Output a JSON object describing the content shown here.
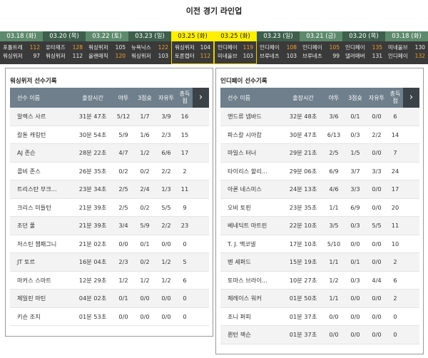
{
  "title": "이전 경기 라인업",
  "games": [
    {
      "date": "03.18 (화)",
      "t1": "포틀트레",
      "s1": "112",
      "w1": true,
      "t2": "워싱위저",
      "s2": "97",
      "w2": false,
      "style": "a"
    },
    {
      "date": "03.20 (목)",
      "t1": "유타재즈",
      "s1": "128",
      "w1": true,
      "t2": "워싱위저",
      "s2": "112",
      "w2": false,
      "style": "b"
    },
    {
      "date": "03.22 (토)",
      "t1": "워싱위저",
      "s1": "105",
      "w1": false,
      "t2": "올랜매직",
      "s2": "120",
      "w2": true,
      "style": "a"
    },
    {
      "date": "03.23 (일)",
      "t1": "뉴욕닉스",
      "s1": "122",
      "w1": true,
      "t2": "워싱위저",
      "s2": "103",
      "w2": false,
      "style": "b"
    },
    {
      "date": "03.25 (화)",
      "t1": "워싱위저",
      "s1": "104",
      "w1": false,
      "t2": "토론랩터",
      "s2": "112",
      "w2": true,
      "style": "sel"
    },
    {
      "date": "03.25 (화)",
      "t1": "인디페이",
      "s1": "119",
      "w1": true,
      "t2": "미네울브",
      "s2": "103",
      "w2": false,
      "style": "sel"
    },
    {
      "date": "03.23 (일)",
      "t1": "인디페이",
      "s1": "108",
      "w1": true,
      "t2": "브루네츠",
      "s2": "103",
      "w2": false,
      "style": "b"
    },
    {
      "date": "03.21 (금)",
      "t1": "인디페이",
      "s1": "105",
      "w1": true,
      "t2": "브루네츠",
      "s2": "99",
      "w2": false,
      "style": "a"
    },
    {
      "date": "03.20 (목)",
      "t1": "인디페이",
      "s1": "135",
      "w1": true,
      "t2": "댈러매버",
      "s2": "131",
      "w2": false,
      "style": "b"
    },
    {
      "date": "03.18 (화)",
      "t1": "미네울브",
      "s1": "130",
      "w1": false,
      "t2": "인디페이",
      "s2": "132",
      "w2": true,
      "style": "a"
    }
  ],
  "headers": [
    "선수 이름",
    "출장시간",
    "야투",
    "3점슛",
    "자유투",
    "총득점"
  ],
  "teams": [
    {
      "title": "워싱위저 선수기록",
      "rows": [
        [
          "알렉스 사르",
          "31분 47초",
          "5/12",
          "1/7",
          "3/9",
          "16"
        ],
        [
          "칼톤 캐링턴",
          "30분 54초",
          "5/9",
          "1/6",
          "2/3",
          "15"
        ],
        [
          "AJ 존슨",
          "28분 22초",
          "4/7",
          "1/2",
          "6/6",
          "17"
        ],
        [
          "콜비 존스",
          "26분 35초",
          "0/2",
          "0/2",
          "2/2",
          "2"
        ],
        [
          "트리스탄 부크...",
          "23분 34초",
          "2/5",
          "2/4",
          "1/3",
          "11"
        ],
        [
          "크리스 미들턴",
          "21분 39초",
          "2/5",
          "0/2",
          "5/5",
          "9"
        ],
        [
          "조던 풀",
          "21분 39초",
          "3/4",
          "5/9",
          "2/2",
          "23"
        ],
        [
          "저스틴 챔패그니",
          "21분 02초",
          "0/0",
          "0/1",
          "0/0",
          "0"
        ],
        [
          "JT 토르",
          "16분 04초",
          "2/3",
          "0/2",
          "1/2",
          "5"
        ],
        [
          "마커스 스마트",
          "12분 29초",
          "1/2",
          "1/2",
          "1/2",
          "6"
        ],
        [
          "제일린 마틴",
          "04분 02초",
          "0/1",
          "0/0",
          "0/0",
          "0"
        ],
        [
          "키숀 조지",
          "01분 53초",
          "0/0",
          "0/0",
          "0/0",
          "0"
        ]
      ]
    },
    {
      "title": "인디페이 선수기록",
      "rows": [
        [
          "앤드류 넴바드",
          "32분 48초",
          "3/6",
          "0/1",
          "0/0",
          "6"
        ],
        [
          "파스칼 시아캄",
          "30분 47초",
          "6/13",
          "0/3",
          "2/2",
          "14"
        ],
        [
          "마일스 터너",
          "29분 21초",
          "2/5",
          "1/5",
          "0/0",
          "7"
        ],
        [
          "타이리스 할리...",
          "29분 06초",
          "6/9",
          "3/7",
          "3/3",
          "24"
        ],
        [
          "아론 네스미스",
          "24분 13초",
          "4/6",
          "3/3",
          "0/0",
          "17"
        ],
        [
          "오비 토핀",
          "23분 35초",
          "1/1",
          "6/9",
          "0/0",
          "20"
        ],
        [
          "베네딕트 마트린",
          "22분 10초",
          "3/5",
          "0/3",
          "5/5",
          "11"
        ],
        [
          "T. J. 맥코넬",
          "17분 10초",
          "5/10",
          "0/0",
          "0/0",
          "10"
        ],
        [
          "벤 셰퍼드",
          "15분 19초",
          "1/1",
          "0/1",
          "0/0",
          "2"
        ],
        [
          "토마스 브라이...",
          "10분 27초",
          "1/2",
          "0/3",
          "4/4",
          "6"
        ],
        [
          "제레이스 워커",
          "01분 50초",
          "1/1",
          "0/0",
          "0/0",
          "2"
        ],
        [
          "조니 퍼피",
          "01분 37초",
          "0/0",
          "0/0",
          "0/0",
          "0"
        ],
        [
          "퀸턴 잭슨",
          "01분 37초",
          "0/0",
          "0/0",
          "0/0",
          "0"
        ]
      ]
    }
  ],
  "arrow_icon": "chevron-right-icon"
}
